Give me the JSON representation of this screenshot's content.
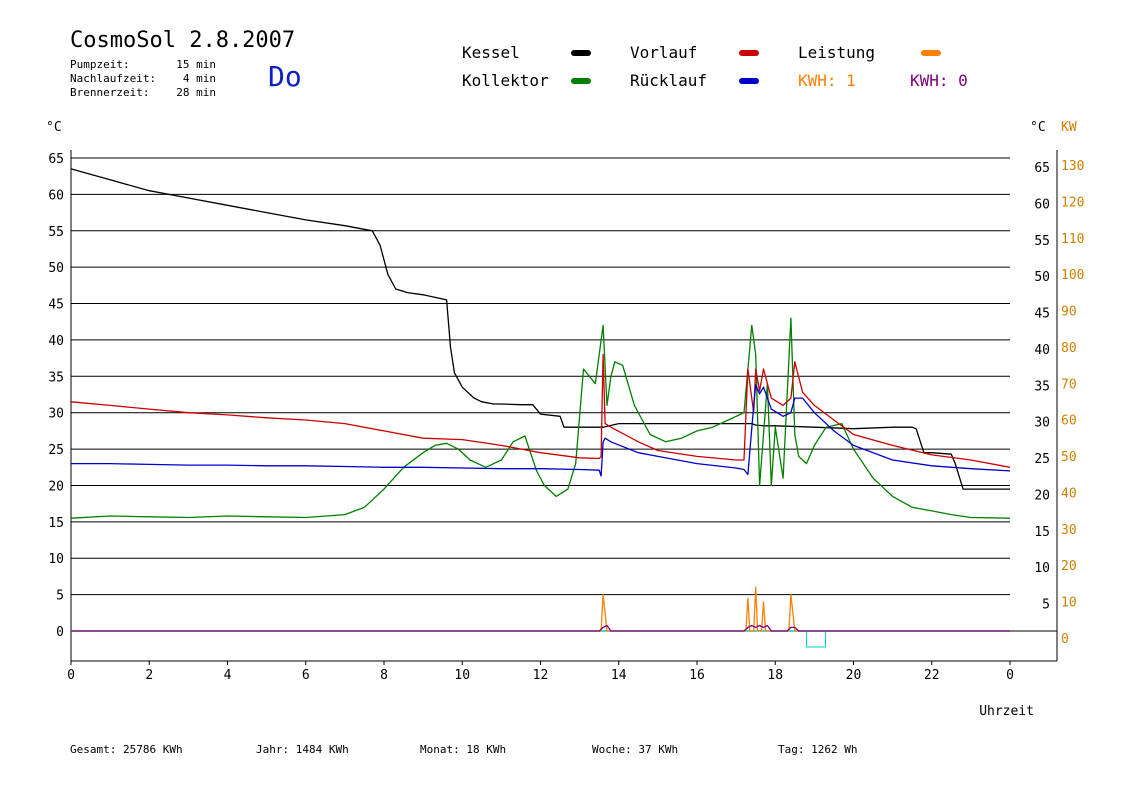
{
  "header": {
    "title": "CosmoSol 2.8.2007",
    "day": "Do",
    "info": [
      {
        "label": "Pumpzeit:",
        "value": "15 min"
      },
      {
        "label": "Nachlaufzeit:",
        "value": "4 min"
      },
      {
        "label": "Brennerzeit:",
        "value": "28 min"
      }
    ]
  },
  "legend": {
    "kessel": "Kessel",
    "kollektor": "Kollektor",
    "vorlauf": "Vorlauf",
    "ruecklauf": "Rücklauf",
    "leistung": "Leistung",
    "kwh1": "KWH: 1",
    "kwh0": "KWH: 0"
  },
  "colors": {
    "kessel": "#000000",
    "kollektor": "#008000",
    "vorlauf": "#cc0000",
    "ruecklauf": "#0000cc",
    "leistung": "#ff8000",
    "kwh0": "#800080",
    "zero": "#00cccc",
    "axis_right": "#d08000"
  },
  "units": {
    "left": "°C",
    "right_c": "°C",
    "right_kw": "KW"
  },
  "footer": {
    "gesamt": "Gesamt:  25786 KWh",
    "jahr": "Jahr:   1484 KWh",
    "monat": "Monat:     18 KWh",
    "woche": "Woche:     37 KWh",
    "tag": "Tag:    1262 Wh"
  },
  "chart_data": {
    "type": "line",
    "xlabel": "Uhrzeit",
    "x_ticks": [
      "0",
      "2",
      "4",
      "6",
      "8",
      "10",
      "12",
      "14",
      "16",
      "18",
      "20",
      "22",
      "0"
    ],
    "xlim": [
      0,
      24
    ],
    "ylim": [
      0,
      65
    ],
    "y_ticks": [
      0,
      5,
      10,
      15,
      20,
      25,
      30,
      35,
      40,
      45,
      50,
      55,
      60,
      65
    ],
    "y2_ticks": [
      0,
      10,
      20,
      30,
      40,
      50,
      60,
      70,
      80,
      90,
      100,
      110,
      120,
      130
    ],
    "grid": true,
    "series": [
      {
        "name": "Kessel",
        "color": "#000000",
        "x": [
          0,
          1,
          2,
          3,
          4,
          5,
          6,
          7,
          7.7,
          7.9,
          8.1,
          8.3,
          8.6,
          9,
          9.6,
          9.7,
          9.8,
          10,
          10.3,
          10.5,
          10.8,
          11,
          11.5,
          11.8,
          12,
          12.5,
          12.6,
          12.8,
          13,
          13.5,
          13.6,
          14,
          16,
          17.4,
          17.5,
          17.7,
          18,
          19,
          20,
          21,
          21.5,
          21.6,
          21.8,
          22,
          22.5,
          22.6,
          22.8,
          23,
          24
        ],
        "y": [
          63.5,
          62,
          60.5,
          59.5,
          58.5,
          57.5,
          56.5,
          55.7,
          55,
          53,
          49,
          47,
          46.5,
          46.2,
          45.5,
          39,
          35.5,
          33.5,
          32,
          31.5,
          31.2,
          31.2,
          31.1,
          31.1,
          29.8,
          29.5,
          28,
          28,
          28,
          28,
          28,
          28.5,
          28.5,
          28.5,
          28.3,
          28.2,
          28.2,
          28,
          27.8,
          28,
          28,
          27.8,
          24.5,
          24.5,
          24.3,
          23,
          19.5,
          19.5,
          19.5
        ]
      },
      {
        "name": "Kollektor",
        "color": "#008000",
        "x": [
          0,
          1,
          2,
          3,
          4,
          5,
          6,
          7,
          7.5,
          8,
          8.5,
          9,
          9.3,
          9.6,
          9.9,
          10.2,
          10.6,
          11,
          11.3,
          11.6,
          11.9,
          12.1,
          12.4,
          12.7,
          12.9,
          13.1,
          13.4,
          13.6,
          13.7,
          13.8,
          13.9,
          14.1,
          14.4,
          14.8,
          15.2,
          15.6,
          16,
          16.4,
          16.8,
          17.2,
          17.4,
          17.5,
          17.6,
          17.7,
          17.8,
          17.9,
          18,
          18.2,
          18.4,
          18.5,
          18.6,
          18.8,
          19,
          19.3,
          19.7,
          20,
          20.5,
          21,
          21.5,
          22,
          22.5,
          23,
          24
        ],
        "y": [
          15.5,
          15.8,
          15.7,
          15.6,
          15.8,
          15.7,
          15.6,
          16,
          17,
          19.5,
          22.5,
          24.5,
          25.5,
          25.8,
          25,
          23.5,
          22.5,
          23.5,
          26,
          26.8,
          22,
          20,
          18.5,
          19.5,
          23,
          36,
          34,
          42,
          31,
          35,
          37,
          36.5,
          31,
          27,
          26,
          26.5,
          27.5,
          28,
          29,
          30,
          42,
          38,
          20,
          27,
          34,
          20,
          28,
          21,
          43,
          27,
          24,
          23,
          25.5,
          28,
          28.5,
          25,
          21,
          18.5,
          17,
          16.5,
          16,
          15.6,
          15.5
        ]
      },
      {
        "name": "Vorlauf",
        "color": "#cc0000",
        "x": [
          0,
          1,
          2,
          3,
          4,
          5,
          6,
          7,
          8,
          9,
          10,
          11,
          12,
          13,
          13.5,
          13.55,
          13.6,
          13.65,
          13.8,
          14.5,
          15,
          16,
          17,
          17.2,
          17.3,
          17.45,
          17.5,
          17.6,
          17.7,
          17.8,
          17.9,
          18.2,
          18.4,
          18.5,
          18.7,
          19,
          19.5,
          20,
          21,
          22,
          23,
          24
        ],
        "y": [
          31.5,
          31,
          30.5,
          30,
          29.7,
          29.3,
          29,
          28.5,
          27.5,
          26.5,
          26.3,
          25.5,
          24.5,
          23.8,
          23.7,
          24,
          38,
          28.5,
          28,
          26,
          24.8,
          24,
          23.5,
          23.5,
          36,
          30,
          36,
          33,
          36,
          34,
          32,
          31,
          32,
          37,
          32.8,
          31,
          29,
          27,
          25.5,
          24.2,
          23.5,
          22.5
        ]
      },
      {
        "name": "Rücklauf",
        "color": "#0000cc",
        "x": [
          0,
          1,
          2,
          3,
          4,
          5,
          6,
          7,
          8,
          9,
          10,
          11,
          12,
          13,
          13.5,
          13.55,
          13.6,
          13.65,
          13.8,
          14.5,
          15,
          16,
          17,
          17.2,
          17.3,
          17.45,
          17.5,
          17.6,
          17.7,
          17.8,
          17.9,
          18.2,
          18.4,
          18.5,
          18.7,
          19,
          19.5,
          20,
          21,
          22,
          23,
          24
        ],
        "y": [
          23,
          23,
          22.9,
          22.8,
          22.8,
          22.7,
          22.7,
          22.6,
          22.5,
          22.5,
          22.4,
          22.3,
          22.3,
          22.2,
          22.1,
          21.3,
          26,
          26.5,
          26,
          24.5,
          24,
          23,
          22.4,
          22.2,
          21.5,
          31,
          33.8,
          32.6,
          33.5,
          32,
          30.5,
          29.5,
          30,
          32,
          32,
          30,
          27.5,
          25.5,
          23.5,
          22.7,
          22.3,
          22
        ]
      },
      {
        "name": "Leistung",
        "color": "#ff8000",
        "axis": "right",
        "x": [
          0,
          13.5,
          13.55,
          13.6,
          13.7,
          17.2,
          17.25,
          17.3,
          17.35,
          17.4,
          17.45,
          17.5,
          17.55,
          17.6,
          17.65,
          17.7,
          17.75,
          17.8,
          18.3,
          18.35,
          18.4,
          18.5,
          24
        ],
        "y": [
          0,
          0,
          0,
          10,
          0,
          0,
          0,
          9,
          0,
          0,
          0,
          12,
          0,
          0,
          0,
          8,
          0,
          0,
          0,
          0,
          10,
          0,
          0
        ]
      },
      {
        "name": "KWH: 0",
        "color": "#800080",
        "axis": "right",
        "x": [
          0,
          13.5,
          13.6,
          13.7,
          13.8,
          17.2,
          17.3,
          17.4,
          17.5,
          17.6,
          17.7,
          17.8,
          17.9,
          18.3,
          18.4,
          18.5,
          18.6,
          24
        ],
        "y": [
          0,
          0,
          1,
          1.5,
          0,
          0,
          1,
          1.5,
          1,
          1.5,
          1,
          1.5,
          0,
          0,
          1,
          1,
          0,
          0
        ]
      }
    ]
  }
}
